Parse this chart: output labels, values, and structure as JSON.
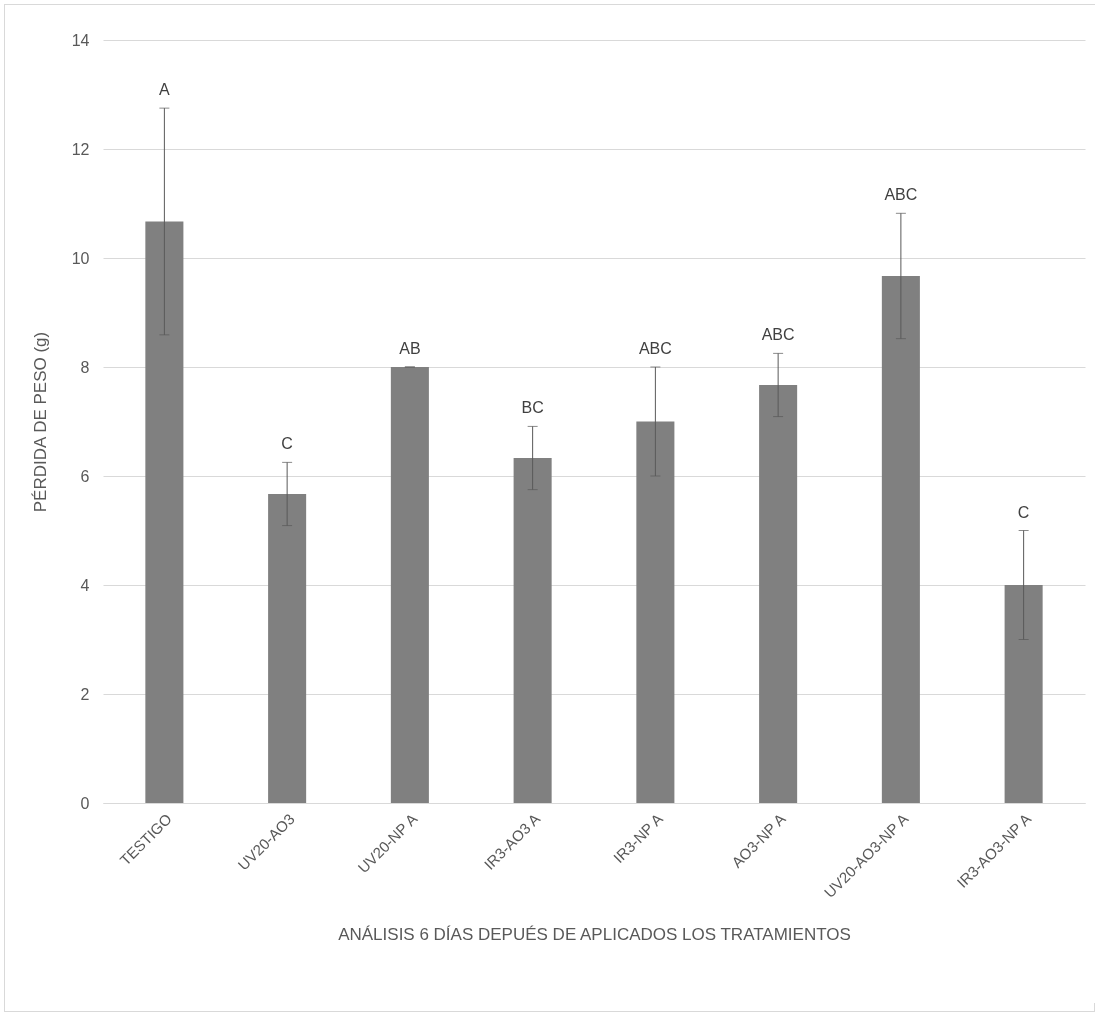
{
  "chart_data": {
    "type": "bar",
    "xlabel": "ANÁLISIS 6 DÍAS DEPUÉS DE APLICADOS LOS TRATAMIENTOS",
    "ylabel": "PÉRDIDA DE PESO (g)",
    "categories": [
      "TESTIGO",
      "UV20-AO3",
      "UV20-NP A",
      "IR3-AO3 A",
      "IR3-NP A",
      "AO3-NP A",
      "UV20-AO3-NP A",
      "IR3-AO3-NP A"
    ],
    "values": [
      10.67,
      5.67,
      8.0,
      6.33,
      7.0,
      7.67,
      9.67,
      4.0
    ],
    "errors": [
      2.08,
      0.58,
      0,
      0.58,
      1.0,
      0.58,
      1.15,
      1.0
    ],
    "color": "#808080",
    "ylim": [
      0,
      14
    ],
    "yticks": [
      0,
      2,
      4,
      6,
      8,
      10,
      12,
      14
    ],
    "grid": "y",
    "annotations": [
      {
        "text": "A",
        "x": "TESTIGO",
        "y": 12.75
      },
      {
        "text": "C",
        "x": "UV20-AO3",
        "y": 6.25
      },
      {
        "text": "AB",
        "x": "UV20-NP A",
        "y": 8.0
      },
      {
        "text": "BC",
        "x": "IR3-AO3 A",
        "y": 6.91
      },
      {
        "text": "ABC",
        "x": "IR3-NP A",
        "y": 8.0
      },
      {
        "text": "ABC",
        "x": "AO3-NP A",
        "y": 8.25
      },
      {
        "text": "ABC",
        "x": "UV20-AO3-NP A",
        "y": 10.82
      },
      {
        "text": "C",
        "x": "IR3-AO3-NP A",
        "y": 5.0
      }
    ]
  }
}
